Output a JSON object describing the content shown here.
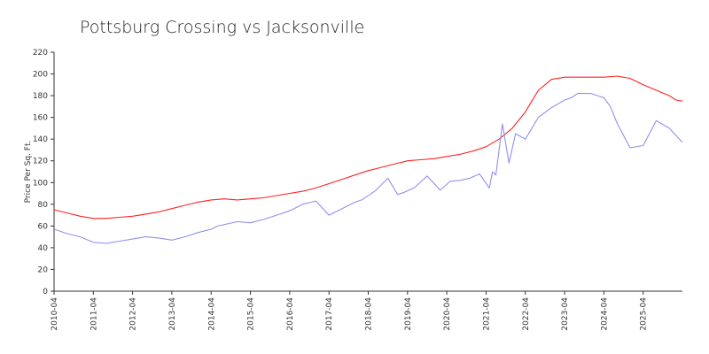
{
  "chart_data": {
    "type": "line",
    "title": "Pottsburg Crossing vs  Jacksonville",
    "xlabel": "",
    "ylabel": "Price Per Sq. Ft.",
    "ylim": [
      0,
      220
    ],
    "yticks": [
      0,
      20,
      40,
      60,
      80,
      100,
      120,
      140,
      160,
      180,
      200,
      220
    ],
    "xlim": [
      "2010-04",
      "2026-04"
    ],
    "xticks": [
      "2010-04",
      "2011-04",
      "2012-04",
      "2013-04",
      "2014-04",
      "2015-04",
      "2016-04",
      "2017-04",
      "2018-04",
      "2019-04",
      "2020-04",
      "2021-04",
      "2022-04",
      "2023-04",
      "2024-04",
      "2025-04"
    ],
    "grid": false,
    "legend": "none",
    "series": [
      {
        "color": "#ff2020",
        "x": [
          "2010-04",
          "2010-08",
          "2010-12",
          "2011-04",
          "2011-08",
          "2011-12",
          "2012-04",
          "2012-08",
          "2012-12",
          "2013-04",
          "2013-08",
          "2013-12",
          "2014-04",
          "2014-08",
          "2014-12",
          "2015-04",
          "2015-08",
          "2015-12",
          "2016-04",
          "2016-08",
          "2016-12",
          "2017-04",
          "2017-08",
          "2017-12",
          "2018-04",
          "2018-08",
          "2018-12",
          "2019-04",
          "2019-08",
          "2019-12",
          "2020-04",
          "2020-08",
          "2020-12",
          "2021-04",
          "2021-08",
          "2021-12",
          "2022-04",
          "2022-06",
          "2022-08",
          "2022-12",
          "2023-04",
          "2023-06",
          "2023-08",
          "2023-12",
          "2024-04",
          "2024-08",
          "2024-12",
          "2025-04",
          "2025-08",
          "2025-12",
          "2026-02",
          "2026-04"
        ],
        "y": [
          75,
          72,
          69,
          67,
          67,
          68,
          69,
          71,
          73,
          76,
          79,
          82,
          84,
          85,
          84,
          85,
          86,
          88,
          90,
          92,
          95,
          99,
          103,
          107,
          111,
          114,
          117,
          120,
          121,
          122,
          124,
          126,
          129,
          133,
          140,
          150,
          165,
          175,
          185,
          195,
          197,
          197,
          197,
          197,
          197,
          198,
          196,
          190,
          185,
          180,
          176,
          175
        ]
      },
      {
        "color": "#9090ee",
        "x": [
          "2010-04",
          "2010-08",
          "2010-12",
          "2011-04",
          "2011-08",
          "2011-12",
          "2012-04",
          "2012-08",
          "2012-12",
          "2013-04",
          "2013-08",
          "2013-12",
          "2014-04",
          "2014-06",
          "2014-09",
          "2014-12",
          "2015-04",
          "2015-08",
          "2015-12",
          "2016-04",
          "2016-06",
          "2016-08",
          "2016-12",
          "2017-04",
          "2017-08",
          "2017-12",
          "2018-02",
          "2018-06",
          "2018-10",
          "2019-01",
          "2019-03",
          "2019-06",
          "2019-10",
          "2020-02",
          "2020-05",
          "2020-08",
          "2020-11",
          "2021-02",
          "2021-05",
          "2021-06",
          "2021-07",
          "2021-09",
          "2021-11",
          "2022-01",
          "2022-04",
          "2022-08",
          "2022-12",
          "2023-04",
          "2023-06",
          "2023-08",
          "2023-12",
          "2024-04",
          "2024-06",
          "2024-08",
          "2024-12",
          "2025-04",
          "2025-08",
          "2025-12",
          "2026-04"
        ],
        "y": [
          57,
          53,
          50,
          45,
          44,
          46,
          48,
          50,
          49,
          47,
          50,
          54,
          57,
          60,
          62,
          64,
          63,
          66,
          70,
          74,
          77,
          80,
          83,
          70,
          76,
          82,
          84,
          92,
          104,
          89,
          91,
          95,
          106,
          93,
          101,
          102,
          104,
          108,
          95,
          110,
          107,
          154,
          118,
          145,
          140,
          160,
          169,
          176,
          178,
          182,
          182,
          178,
          170,
          155,
          132,
          134,
          157,
          150,
          137
        ]
      }
    ]
  }
}
